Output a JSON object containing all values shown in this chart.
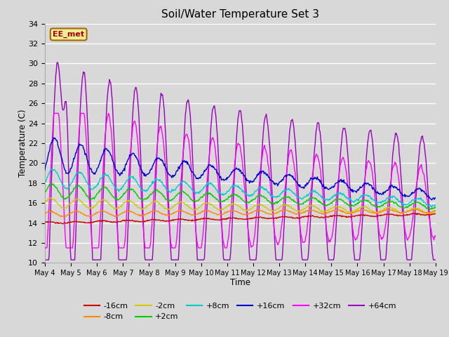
{
  "title": "Soil/Water Temperature Set 3",
  "xlabel": "Time",
  "ylabel": "Temperature (C)",
  "ylim": [
    10,
    34
  ],
  "yticks": [
    10,
    12,
    14,
    16,
    18,
    20,
    22,
    24,
    26,
    28,
    30,
    32,
    34
  ],
  "background_color": "#d8d8d8",
  "watermark": "EE_met",
  "colors": {
    "-16cm": "#cc0000",
    "-8cm": "#ff8800",
    "-2cm": "#cccc00",
    "+2cm": "#00cc00",
    "+8cm": "#00cccc",
    "+16cm": "#0000cc",
    "+32cm": "#ff00ff",
    "+64cm": "#9900bb"
  },
  "legend_order": [
    "-16cm",
    "-8cm",
    "-2cm",
    "+2cm",
    "+8cm",
    "+16cm",
    "+32cm",
    "+64cm"
  ]
}
